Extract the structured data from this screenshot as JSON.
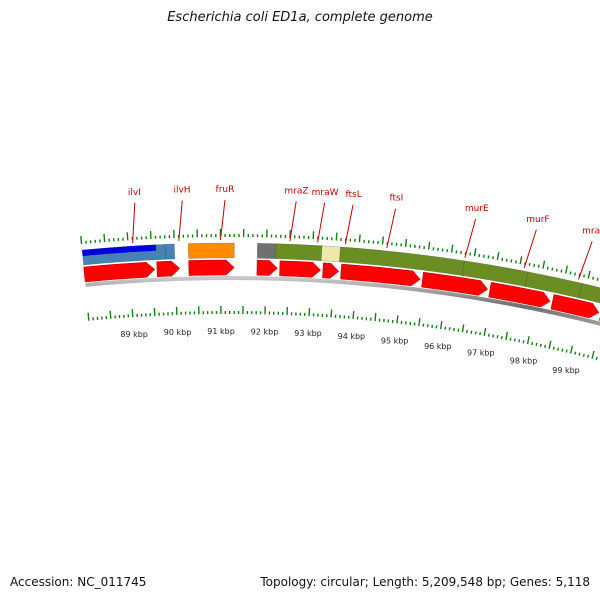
{
  "title": "Escherichia coli ED1a, complete genome",
  "footer": {
    "accession": "Accession: NC_011745",
    "summary": "Topology: circular; Length: 5,209,548 bp; Genes: 5,118"
  },
  "colors": {
    "gene_arrow": "#ff0000",
    "label": "#c00000",
    "tick": "#1a7a1a",
    "backbone": "#8a8a8a",
    "ilv_dark": "#0000dd",
    "ilv_light": "#4682b4",
    "fru": "#ff8c00",
    "mra_gray": "#707070",
    "mra_green": "#6b8e23",
    "ftsL_pale": "#eee8aa"
  },
  "genes": [
    {
      "name": "ilvI",
      "kbp": 89.1
    },
    {
      "name": "ilvH",
      "kbp": 90.1
    },
    {
      "name": "fruR",
      "kbp": 91.0
    },
    {
      "name": "mraZ",
      "kbp": 92.5
    },
    {
      "name": "mraW",
      "kbp": 93.1
    },
    {
      "name": "ftsL",
      "kbp": 93.7
    },
    {
      "name": "ftsI",
      "kbp": 94.6
    },
    {
      "name": "murE",
      "kbp": 96.3
    },
    {
      "name": "murF",
      "kbp": 97.6
    },
    {
      "name": "mraY",
      "kbp": 98.8
    }
  ],
  "kbp_ticks": [
    "89 kbp",
    "90 kbp",
    "91 kbp",
    "92 kbp",
    "93 kbp",
    "94 kbp",
    "95 kbp",
    "96 kbp",
    "97 kbp",
    "98 kbp",
    "99 kbp"
  ]
}
